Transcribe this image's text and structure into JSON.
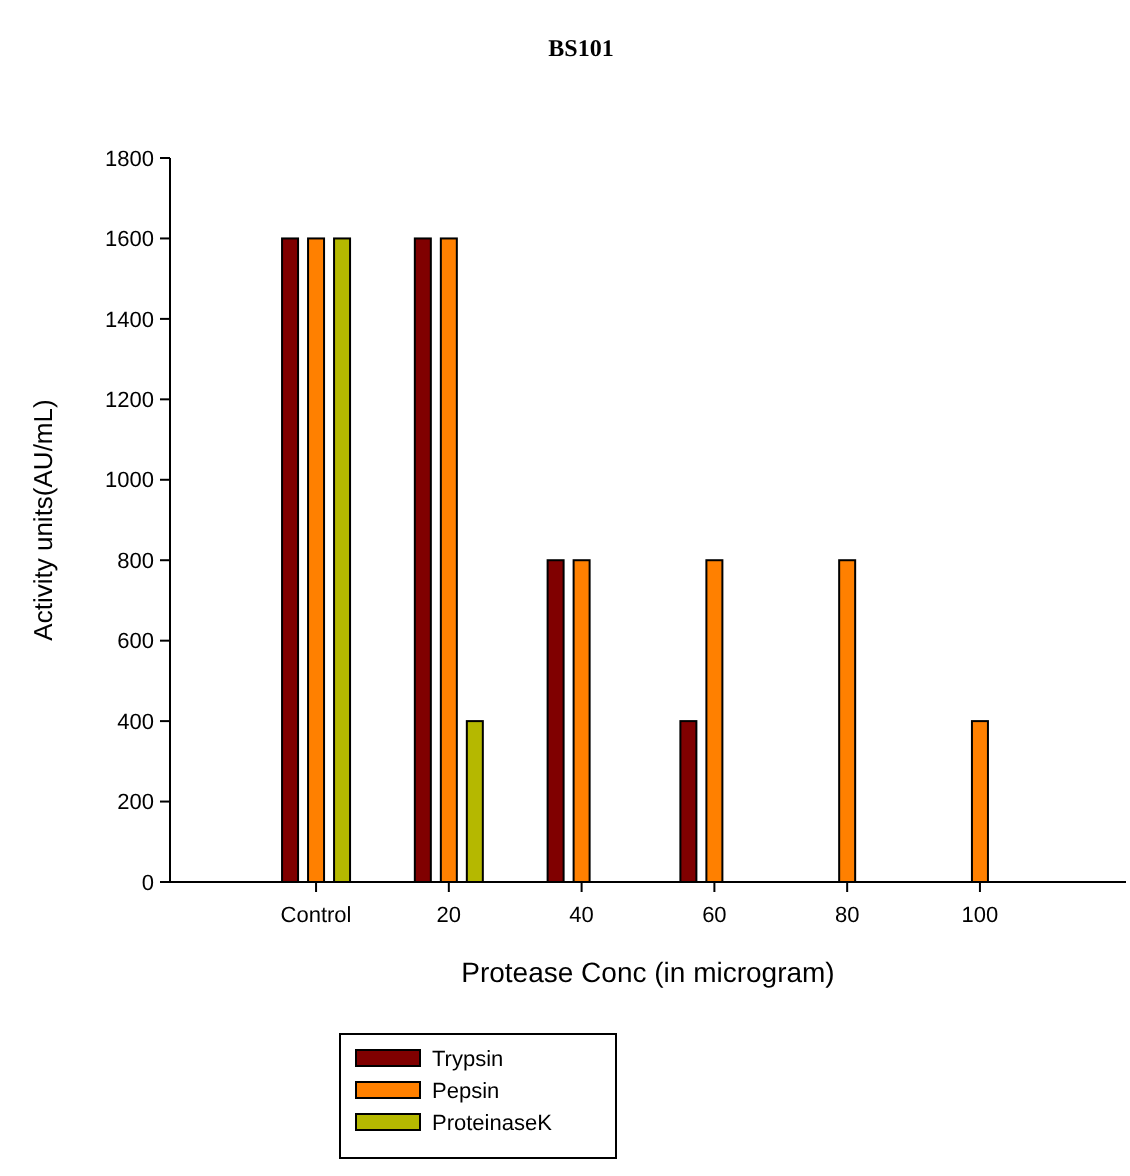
{
  "chart_data": {
    "type": "bar",
    "title": "BS101",
    "xlabel": "Protease Conc (in microgram)",
    "ylabel": "Activity units(AU/mL)",
    "categories": [
      "Control",
      "20",
      "40",
      "60",
      "80",
      "100"
    ],
    "series": [
      {
        "name": "Trypsin",
        "color": "#800000",
        "values": [
          1600,
          1600,
          800,
          400,
          null,
          null
        ]
      },
      {
        "name": "Pepsin",
        "color": "#ff8000",
        "values": [
          1600,
          1600,
          800,
          800,
          800,
          400
        ]
      },
      {
        "name": "ProteinaseK",
        "color": "#b5b800",
        "values": [
          1600,
          400,
          null,
          null,
          null,
          null
        ]
      }
    ],
    "ylim": [
      0,
      1800
    ],
    "yticks": [
      0,
      200,
      400,
      600,
      800,
      1000,
      1200,
      1400,
      1600,
      1800
    ],
    "grid": false,
    "legend": "bottom"
  }
}
